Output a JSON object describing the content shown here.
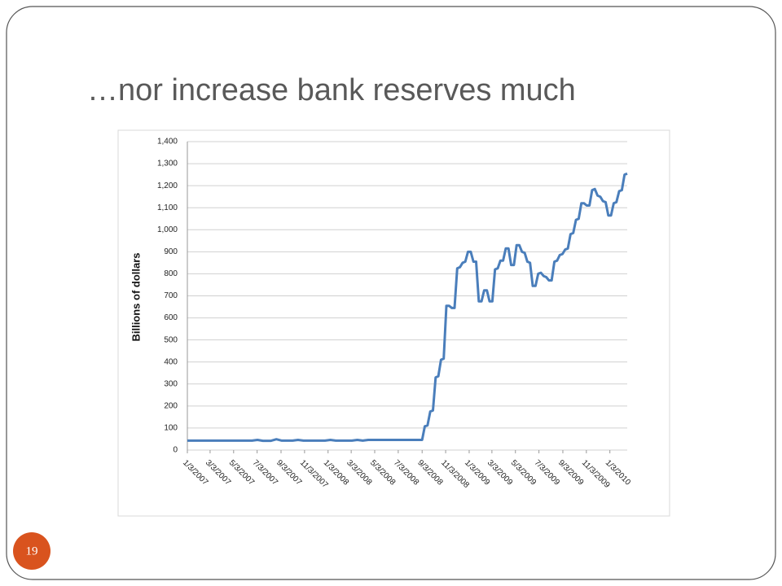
{
  "slide_number": "19",
  "chart_data": {
    "type": "line",
    "title": "…nor increase bank reserves much",
    "y_label": "Billions of dollars",
    "color": "#4a7ebb",
    "grid": true,
    "xlim": [
      "1/3/2007",
      "2/17/2010"
    ],
    "xticks": [
      "1/3/2007",
      "3/3/2007",
      "5/3/2007",
      "7/3/2007",
      "9/3/2007",
      "11/3/2007",
      "1/3/2008",
      "3/3/2008",
      "5/3/2008",
      "7/3/2008",
      "9/3/2008",
      "11/3/2008",
      "1/3/2009",
      "3/3/2009",
      "5/3/2009",
      "7/3/2009",
      "9/3/2009",
      "11/3/2009",
      "1/3/2010"
    ],
    "ylim": [
      0,
      1400
    ],
    "yticks": [
      0,
      100,
      200,
      300,
      400,
      500,
      600,
      700,
      800,
      900,
      {
        "value": 1000,
        "label": "1,000"
      },
      {
        "value": 1100,
        "label": "1,100"
      },
      {
        "value": 1200,
        "label": "1,200"
      },
      {
        "value": 1300,
        "label": "1,300"
      },
      {
        "value": 1400,
        "label": "1,400"
      }
    ],
    "x": [
      "1/3/2007",
      "6/20/2007",
      "7/4/2007",
      "7/18/2007",
      "8/8/2007",
      "8/22/2007",
      "9/5/2007",
      "10/3/2007",
      "10/17/2007",
      "10/31/2007",
      "12/26/2007",
      "1/9/2008",
      "1/23/2008",
      "3/5/2008",
      "3/19/2008",
      "4/2/2008",
      "4/16/2008",
      "9/3/2008",
      "9/10/2008",
      "9/17/2008",
      "9/24/2008",
      "10/1/2008",
      "10/8/2008",
      "10/15/2008",
      "10/22/2008",
      "10/29/2008",
      "11/5/2008",
      "11/12/2008",
      "11/19/2008",
      "11/26/2008",
      "12/3/2008",
      "12/10/2008",
      "12/17/2008",
      "12/24/2008",
      "12/31/2008",
      "1/7/2009",
      "1/14/2009",
      "1/21/2009",
      "1/28/2009",
      "2/4/2009",
      "2/11/2009",
      "2/18/2009",
      "2/25/2009",
      "3/4/2009",
      "3/11/2009",
      "3/18/2009",
      "3/25/2009",
      "4/1/2009",
      "4/8/2009",
      "4/15/2009",
      "4/22/2009",
      "4/29/2009",
      "5/6/2009",
      "5/13/2009",
      "5/20/2009",
      "5/27/2009",
      "6/3/2009",
      "6/10/2009",
      "6/17/2009",
      "6/24/2009",
      "7/1/2009",
      "7/8/2009",
      "7/15/2009",
      "7/22/2009",
      "7/29/2009",
      "8/5/2009",
      "8/12/2009",
      "8/19/2009",
      "8/26/2009",
      "9/2/2009",
      "9/9/2009",
      "9/16/2009",
      "9/23/2009",
      "9/30/2009",
      "10/7/2009",
      "10/14/2009",
      "10/21/2009",
      "10/28/2009",
      "11/4/2009",
      "11/11/2009",
      "11/18/2009",
      "11/25/2009",
      "12/2/2009",
      "12/9/2009",
      "12/16/2009",
      "12/23/2009",
      "12/30/2009",
      "1/6/2010",
      "1/13/2010",
      "1/20/2010",
      "1/27/2010",
      "2/3/2010",
      "2/10/2010",
      "2/17/2010"
    ],
    "values": [
      43,
      43,
      46,
      42,
      42,
      49,
      43,
      43,
      46,
      43,
      43,
      46,
      43,
      43,
      46,
      43,
      46,
      46,
      108,
      112,
      175,
      180,
      330,
      335,
      410,
      415,
      655,
      655,
      645,
      645,
      825,
      830,
      850,
      855,
      900,
      900,
      855,
      855,
      675,
      675,
      725,
      725,
      675,
      675,
      820,
      825,
      860,
      860,
      915,
      915,
      840,
      840,
      930,
      930,
      900,
      895,
      855,
      850,
      745,
      745,
      800,
      805,
      790,
      785,
      770,
      770,
      855,
      860,
      885,
      890,
      910,
      915,
      980,
      985,
      1045,
      1050,
      1120,
      1120,
      1110,
      1110,
      1180,
      1185,
      1155,
      1150,
      1130,
      1125,
      1065,
      1065,
      1120,
      1125,
      1175,
      1180,
      1250,
      1255
    ]
  }
}
